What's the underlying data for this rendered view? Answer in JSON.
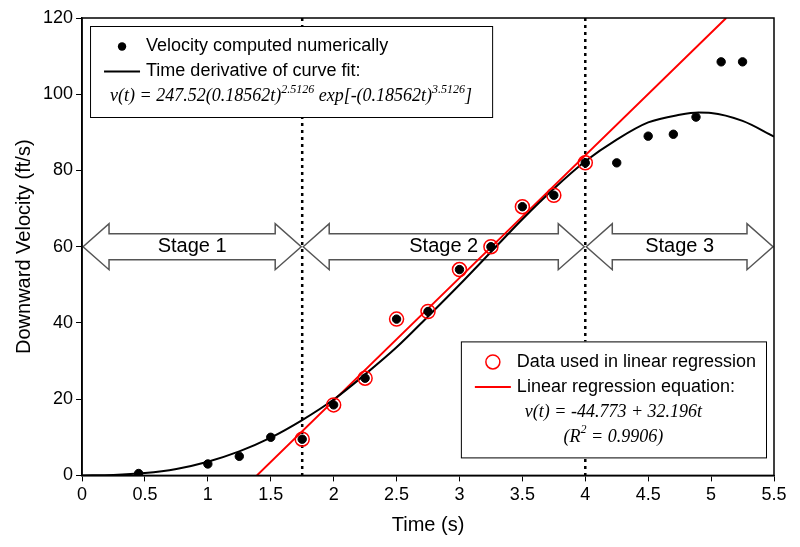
{
  "chart_data": {
    "type": "scatter",
    "x_label": "Time (s)",
    "y_label": "Downward Velocity (ft/s)",
    "xlim": [
      0,
      5.5
    ],
    "xticks": [
      0,
      0.5,
      1,
      1.5,
      2,
      2.5,
      3,
      3.5,
      4,
      4.5,
      5,
      5.5
    ],
    "ylim": [
      0,
      120
    ],
    "yticks": [
      0,
      20,
      40,
      60,
      80,
      100,
      120
    ],
    "grid": false,
    "vlines": [
      1.75,
      4
    ],
    "stage_y": 60,
    "stages": [
      {
        "label": "Stage 1",
        "from": 0,
        "to": 1.75
      },
      {
        "label": "Stage 2",
        "from": 1.75,
        "to": 4
      },
      {
        "label": "Stage 3",
        "from": 4,
        "to": 5.5
      }
    ],
    "series": [
      {
        "name": "Velocity computed numerically",
        "type": "scatter",
        "marker": "circle",
        "color": "#000000",
        "legend": "upper left",
        "x": [
          0.45,
          1.0,
          1.25,
          1.5,
          1.75,
          2.0,
          2.25,
          2.5,
          2.75,
          3.0,
          3.25,
          3.5,
          3.75,
          4.0,
          4.25,
          4.5,
          4.7,
          4.88,
          5.08,
          5.25
        ],
        "values": [
          0.5,
          3,
          5,
          10,
          9.5,
          18.5,
          25.5,
          41,
          43,
          54,
          60,
          70.5,
          73.5,
          82,
          82,
          89,
          89.5,
          94,
          108.5,
          108.5
        ]
      },
      {
        "name": "Time derivative of curve fit:",
        "type": "line",
        "marker": "none",
        "line_style": "solid",
        "color": "#000000",
        "legend": "upper left",
        "equation_lines": [
          [
            {
              "text": "v(t) = 247.52(0.18562t)"
            },
            {
              "sup": "2.5126"
            },
            {
              "text": " exp[-(0.18562t)"
            },
            {
              "sup": "3.5126"
            },
            {
              "text": "]"
            }
          ]
        ],
        "x": [
          0,
          0.25,
          0.5,
          0.75,
          1,
          1.25,
          1.5,
          1.75,
          2,
          2.25,
          2.5,
          2.75,
          3,
          3.25,
          3.5,
          3.75,
          4,
          4.25,
          4.5,
          4.75,
          4.9,
          5,
          5.25,
          5.5
        ],
        "values": [
          0,
          0.1,
          0.6,
          1.7,
          3.6,
          6.3,
          9.9,
          14.5,
          19.9,
          26.5,
          33.6,
          41.7,
          50,
          58.6,
          67.2,
          75.2,
          82.4,
          88.1,
          92.6,
          94.6,
          95.2,
          95.1,
          93,
          88.9
        ]
      },
      {
        "name": "Data used in linear regression",
        "type": "scatter",
        "marker": "open_circle",
        "color": "#ff0000",
        "legend": "lower right",
        "x": [
          1.75,
          2.0,
          2.25,
          2.5,
          2.75,
          3.0,
          3.25,
          3.5,
          3.75,
          4.0
        ],
        "values": [
          9.5,
          18.5,
          25.5,
          41,
          43,
          54,
          60,
          70.5,
          73.5,
          82
        ]
      },
      {
        "name": "Linear regression equation:",
        "type": "line",
        "marker": "none",
        "line_style": "solid",
        "color": "#ff0000",
        "legend": "lower right",
        "equation_lines": [
          [
            {
              "text": "v(t) = -44.773 + 32.196t"
            }
          ],
          [
            {
              "text": "(R"
            },
            {
              "sup": "2"
            },
            {
              "text": " = 0.9906)"
            }
          ]
        ],
        "x": [
          1.39,
          5.12
        ],
        "values": [
          0,
          120
        ]
      }
    ]
  }
}
